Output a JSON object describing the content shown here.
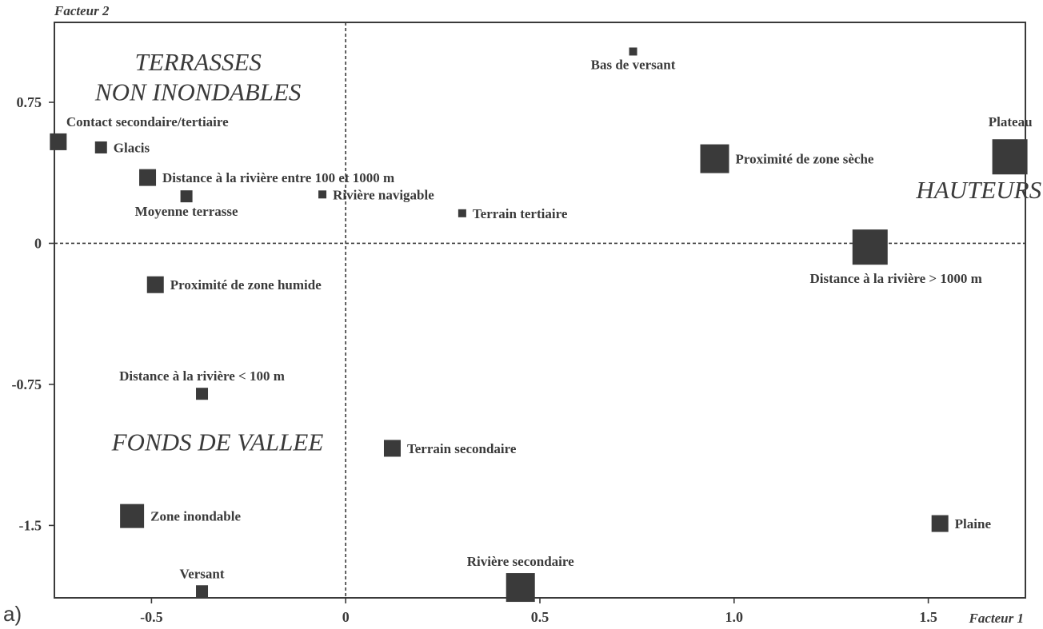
{
  "panel_label": "a)",
  "chart_data": {
    "type": "scatter",
    "xlabel": "Facteur 1",
    "ylabel": "Facteur 2",
    "xlim": [
      -0.75,
      1.75
    ],
    "ylim": [
      -1.885,
      1.175
    ],
    "x_ticks": [
      {
        "value": -0.5,
        "label": "-0.5"
      },
      {
        "value": 0,
        "label": "0"
      },
      {
        "value": 0.5,
        "label": "0.5"
      },
      {
        "value": 1.0,
        "label": "1.0"
      },
      {
        "value": 1.5,
        "label": "1.5"
      }
    ],
    "y_ticks": [
      {
        "value": 0.75,
        "label": "0.75"
      },
      {
        "value": 0,
        "label": "0"
      },
      {
        "value": -0.75,
        "label": "-0.75"
      },
      {
        "value": -1.5,
        "label": "-1.5"
      }
    ],
    "reference_lines": [
      {
        "axis": "x",
        "value": 0
      },
      {
        "axis": "y",
        "value": 0
      }
    ],
    "marker_color": "#3a3a3a",
    "points": [
      {
        "label": "Bas de versant",
        "x": 0.74,
        "y": 1.02,
        "size": 1,
        "label_pos": "below"
      },
      {
        "label": "Contact secondaire/tertiaire",
        "x": -0.74,
        "y": 0.54,
        "size": 3,
        "label_pos": "above-right"
      },
      {
        "label": "Glacis",
        "x": -0.63,
        "y": 0.51,
        "size": 2,
        "label_pos": "right"
      },
      {
        "label": "Distance à la rivière entre 100 et 1000 m",
        "x": -0.51,
        "y": 0.35,
        "size": 3,
        "label_pos": "right"
      },
      {
        "label": "Moyenne terrasse",
        "x": -0.41,
        "y": 0.25,
        "size": 2,
        "label_pos": "below"
      },
      {
        "label": "Rivière navigable",
        "x": -0.06,
        "y": 0.26,
        "size": 1,
        "label_pos": "right"
      },
      {
        "label": "Terrain tertiaire",
        "x": 0.3,
        "y": 0.16,
        "size": 1,
        "label_pos": "right"
      },
      {
        "label": "Proximité de zone sèche",
        "x": 0.95,
        "y": 0.45,
        "size": 5,
        "label_pos": "right"
      },
      {
        "label": "Plateau",
        "x": 1.71,
        "y": 0.46,
        "size": 6,
        "label_pos": "above-left"
      },
      {
        "label": "Distance à la rivière > 1000 m",
        "x": 1.35,
        "y": -0.02,
        "size": 6,
        "label_pos": "below-left"
      },
      {
        "label": "Proximité de zone humide",
        "x": -0.49,
        "y": -0.22,
        "size": 3,
        "label_pos": "right"
      },
      {
        "label": "Distance à la rivière < 100 m",
        "x": -0.37,
        "y": -0.8,
        "size": 2,
        "label_pos": "above"
      },
      {
        "label": "Terrain secondaire",
        "x": 0.12,
        "y": -1.09,
        "size": 3,
        "label_pos": "right"
      },
      {
        "label": "Zone inondable",
        "x": -0.55,
        "y": -1.45,
        "size": 4,
        "label_pos": "right"
      },
      {
        "label": "Plaine",
        "x": 1.53,
        "y": -1.49,
        "size": 3,
        "label_pos": "right"
      },
      {
        "label": "Rivière secondaire",
        "x": 0.45,
        "y": -1.83,
        "size": 5,
        "label_pos": "above"
      },
      {
        "label": "Versant",
        "x": -0.37,
        "y": -1.85,
        "size": 2,
        "label_pos": "above"
      }
    ],
    "group_labels": [
      {
        "text": "TERRASSES",
        "x": -0.38,
        "y": 0.92
      },
      {
        "text": "NON INONDABLES",
        "x": -0.38,
        "y": 0.76
      },
      {
        "text": "HAUTEURS",
        "x": 1.63,
        "y": 0.24
      },
      {
        "text": "FONDS DE VALLEE",
        "x": -0.33,
        "y": -1.1
      }
    ]
  }
}
